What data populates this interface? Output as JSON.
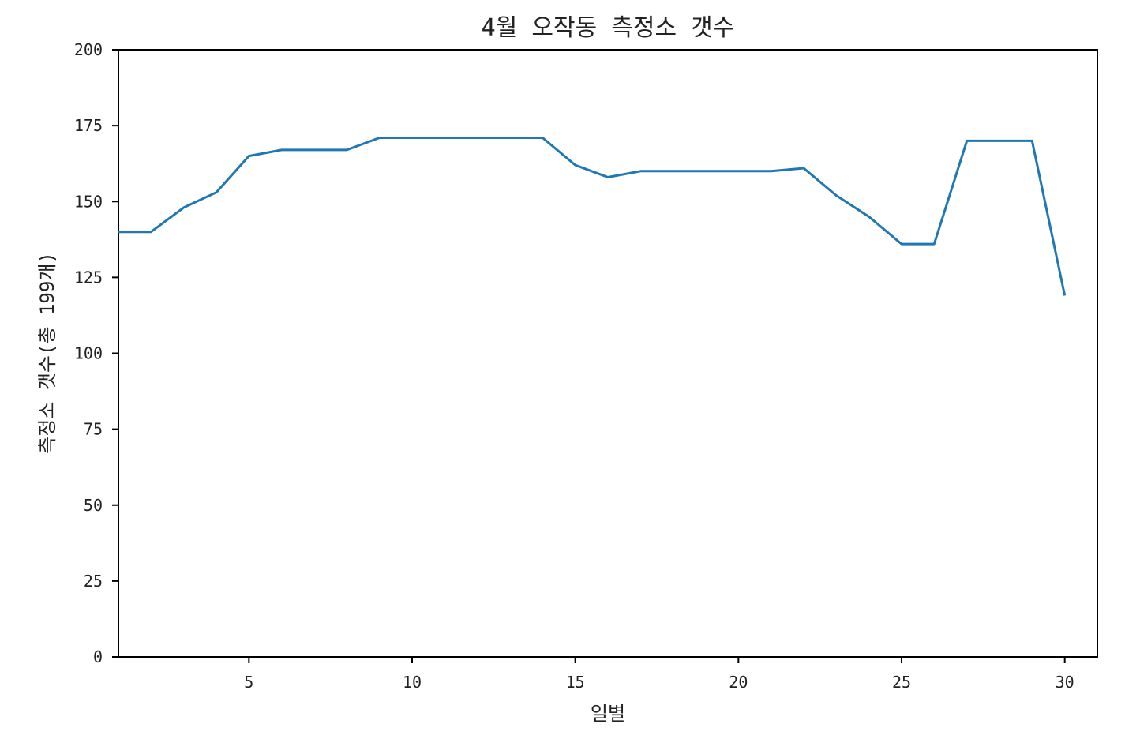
{
  "chart_data": {
    "type": "line",
    "title": "4월 오작동 측정소 갯수",
    "xlabel": "일별",
    "ylabel": "측정소 갯수(총 199개)",
    "xlim": [
      1,
      31
    ],
    "ylim": [
      0,
      200
    ],
    "xticks": [
      5,
      10,
      15,
      20,
      25,
      30
    ],
    "yticks": [
      0,
      25,
      50,
      75,
      100,
      125,
      150,
      175,
      200
    ],
    "grid": false,
    "series": [
      {
        "color": "#1f77b4",
        "x": [
          1,
          2,
          3,
          4,
          5,
          6,
          7,
          8,
          9,
          10,
          11,
          12,
          13,
          14,
          15,
          16,
          17,
          18,
          19,
          20,
          21,
          22,
          23,
          24,
          25,
          26,
          27,
          28,
          29,
          30
        ],
        "values": [
          140,
          140,
          148,
          153,
          165,
          167,
          167,
          167,
          171,
          171,
          171,
          171,
          171,
          171,
          162,
          158,
          160,
          160,
          160,
          160,
          160,
          161,
          152,
          145,
          136,
          136,
          170,
          170,
          170,
          119
        ]
      }
    ]
  }
}
